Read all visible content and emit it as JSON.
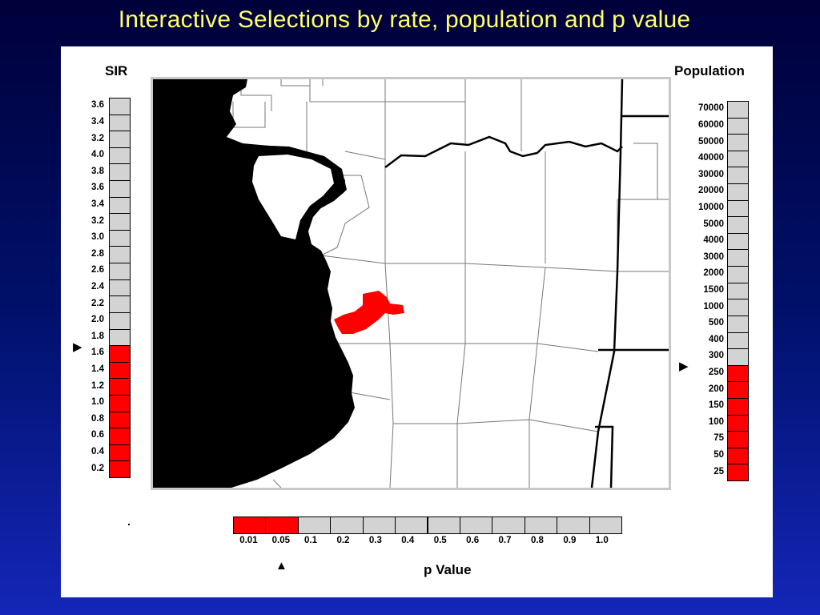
{
  "title": "Interactive Selections by rate, population and p value",
  "sir_legend": {
    "title": "SIR",
    "labels": [
      "3.6",
      "3.4",
      "3.2",
      "4.0",
      "3.8",
      "3.6",
      "3.4",
      "3.2",
      "3.0",
      "2.8",
      "2.6",
      "2.4",
      "2.2",
      "2.0",
      "1.8",
      "1.6",
      "1.4",
      "1.2",
      "1.0",
      "0.8",
      "0.6",
      "0.4",
      "0.2"
    ],
    "selected_value": "1.6",
    "selected_color": "#ff0000",
    "unselected_color": "#d3d3d3",
    "marker_icon": "right-triangle-icon"
  },
  "population_legend": {
    "title": "Population",
    "labels": [
      "70000",
      "60000",
      "50000",
      "40000",
      "30000",
      "20000",
      "10000",
      "5000",
      "4000",
      "3000",
      "2000",
      "1500",
      "1000",
      "500",
      "400",
      "300",
      "250",
      "200",
      "150",
      "100",
      "75",
      "50",
      "25"
    ],
    "selected_value": "250",
    "selected_color": "#ff0000",
    "unselected_color": "#d3d3d3",
    "marker_icon": "right-triangle-icon"
  },
  "pvalue_legend": {
    "title": "p Value",
    "labels": [
      "0.01",
      "0.05",
      "0.1",
      "0.2",
      "0.3",
      "0.4",
      "0.5",
      "0.6",
      "0.7",
      "0.8",
      "0.9",
      "1.0"
    ],
    "selected_value": "0.05",
    "selected_color": "#ff0000",
    "unselected_color": "#d3d3d3",
    "marker_icon": "up-triangle-icon"
  },
  "map": {
    "water_color": "#000000",
    "highlight_color": "#ff0000",
    "border_color": "#c8c8c8"
  }
}
